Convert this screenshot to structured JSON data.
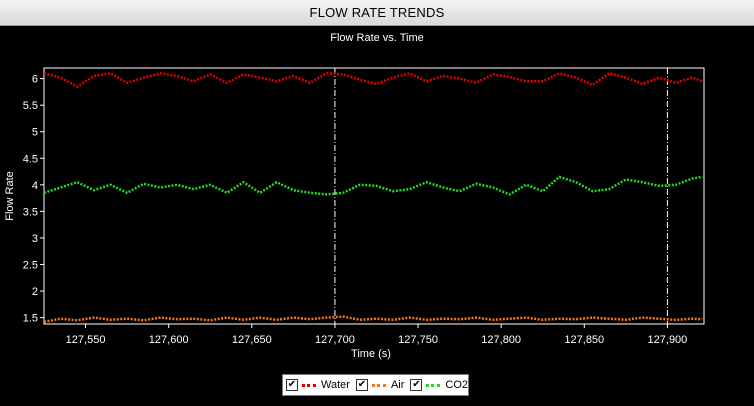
{
  "window": {
    "title": "FLOW RATE TRENDS"
  },
  "chart_data": {
    "type": "line",
    "title": "Flow Rate vs. Time",
    "xlabel": "Time (s)",
    "ylabel": "Flow Rate",
    "xlim": [
      127525,
      127922
    ],
    "ylim": [
      1.38,
      6.2
    ],
    "xticks": [
      127550,
      127600,
      127650,
      127700,
      127750,
      127800,
      127850,
      127900
    ],
    "xtick_labels": [
      "127,550",
      "127,600",
      "127,650",
      "127,700",
      "127,750",
      "127,800",
      "127,850",
      "127,900"
    ],
    "yticks": [
      1.5,
      2,
      2.5,
      3,
      3.5,
      4,
      4.5,
      5,
      5.5,
      6
    ],
    "ytick_labels": [
      "1.5",
      "2",
      "2.5",
      "3",
      "3.5",
      "4",
      "4.5",
      "5",
      "5.5",
      "6"
    ],
    "vertical_markers": [
      127700,
      127900
    ],
    "legend_position": "bottom-center",
    "x": [
      127525,
      127535,
      127545,
      127555,
      127565,
      127575,
      127585,
      127595,
      127605,
      127615,
      127625,
      127635,
      127645,
      127655,
      127665,
      127675,
      127685,
      127695,
      127705,
      127715,
      127725,
      127735,
      127745,
      127755,
      127765,
      127775,
      127785,
      127795,
      127805,
      127815,
      127825,
      127835,
      127845,
      127855,
      127865,
      127875,
      127885,
      127895,
      127905,
      127915,
      127921
    ],
    "series": [
      {
        "name": "Water",
        "color": "#e00000",
        "values": [
          6.1,
          6.02,
          5.85,
          6.05,
          6.1,
          5.92,
          6.02,
          6.1,
          6.05,
          5.95,
          6.08,
          5.92,
          6.08,
          6.02,
          5.95,
          6.05,
          5.92,
          6.1,
          6.08,
          5.98,
          5.9,
          6.02,
          6.1,
          5.95,
          6.05,
          6.0,
          5.92,
          6.08,
          6.03,
          5.95,
          5.95,
          6.1,
          6.02,
          5.88,
          6.1,
          6.02,
          5.9,
          6.02,
          5.92,
          6.02,
          5.95
        ]
      },
      {
        "name": "Air",
        "color": "#f07820",
        "values": [
          1.42,
          1.48,
          1.45,
          1.5,
          1.46,
          1.48,
          1.45,
          1.5,
          1.47,
          1.48,
          1.45,
          1.5,
          1.46,
          1.5,
          1.46,
          1.5,
          1.47,
          1.5,
          1.52,
          1.46,
          1.48,
          1.46,
          1.5,
          1.46,
          1.48,
          1.47,
          1.5,
          1.46,
          1.48,
          1.5,
          1.46,
          1.48,
          1.47,
          1.5,
          1.48,
          1.46,
          1.5,
          1.48,
          1.46,
          1.48,
          1.47
        ]
      },
      {
        "name": "CO2",
        "color": "#22dd22",
        "values": [
          3.85,
          3.95,
          4.05,
          3.9,
          4.0,
          3.85,
          4.02,
          3.95,
          4.0,
          3.92,
          4.0,
          3.85,
          4.05,
          3.85,
          4.05,
          3.9,
          3.85,
          3.82,
          3.85,
          4.0,
          3.98,
          3.88,
          3.92,
          4.05,
          3.95,
          3.88,
          4.02,
          3.95,
          3.82,
          4.0,
          3.88,
          4.15,
          4.05,
          3.88,
          3.92,
          4.1,
          4.05,
          3.98,
          4.0,
          4.12,
          4.15
        ]
      }
    ]
  },
  "legend": {
    "items": [
      {
        "label": "Water",
        "color": "#e00000",
        "checked": true
      },
      {
        "label": "Air",
        "color": "#f07820",
        "checked": true
      },
      {
        "label": "CO2",
        "color": "#22dd22",
        "checked": true
      }
    ],
    "check_glyph": "✔"
  }
}
